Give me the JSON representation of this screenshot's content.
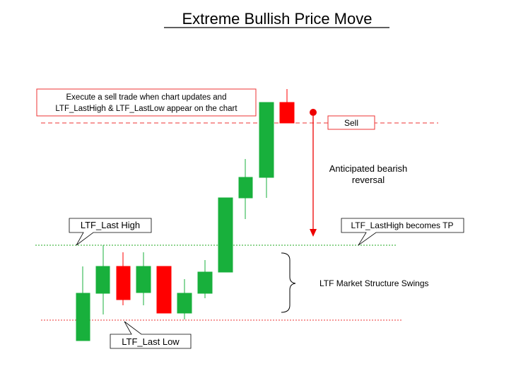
{
  "header": {
    "title": "Extreme Bullish Price Move"
  },
  "callouts": {
    "instruction": [
      "Execute a sell trade when chart updates and",
      "LTF_LastHigh & LTF_LastLow appear on the chart"
    ],
    "sell": "Sell",
    "reversal": [
      "Anticipated bearish",
      "reversal"
    ],
    "last_high": "LTF_Last High",
    "tp": "LTF_LastHigh becomes TP",
    "swings": "LTF Market Structure Swings",
    "last_low": "LTF_Last Low"
  }
}
